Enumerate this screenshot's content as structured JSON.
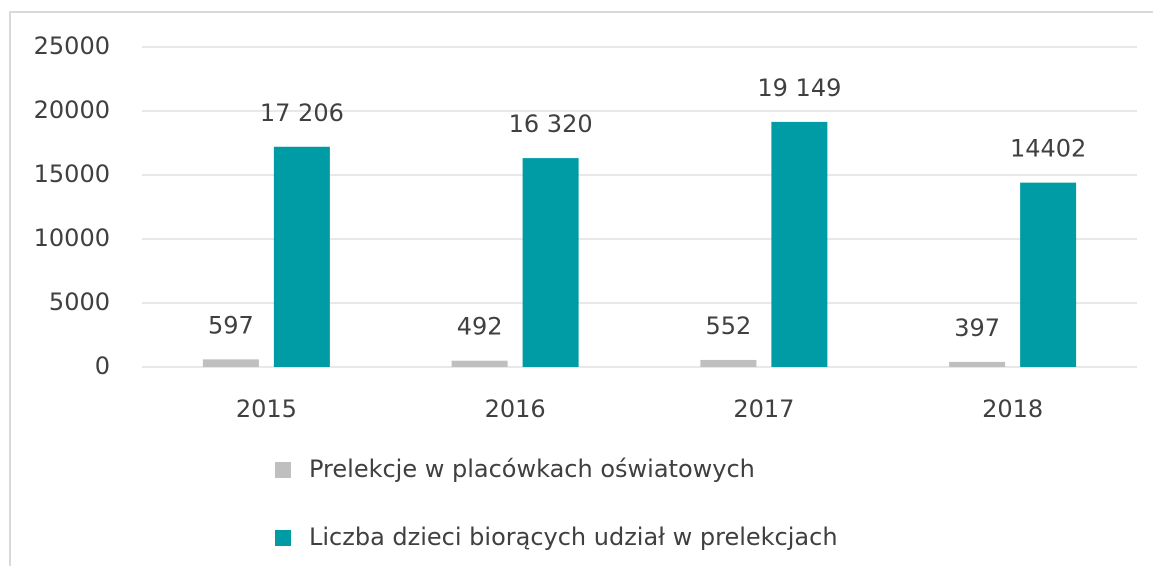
{
  "chart_data": {
    "type": "bar",
    "categories": [
      "2015",
      "2016",
      "2017",
      "2018"
    ],
    "series": [
      {
        "name": "Prelekcje w placówkach oświatowych",
        "color": "#bfbfbf",
        "values": [
          597,
          492,
          552,
          397
        ]
      },
      {
        "name": "Liczba dzieci biorących udział w prelekcjach",
        "color": "#009ca6",
        "values": [
          17206,
          16320,
          19149,
          14402
        ],
        "value_labels": [
          "17 206",
          "16 320",
          "19 149",
          "14402"
        ]
      }
    ],
    "ylim": [
      0,
      25000
    ],
    "yticks": [
      0,
      5000,
      10000,
      15000,
      20000,
      25000
    ],
    "grid": true,
    "legend": "bottom"
  }
}
